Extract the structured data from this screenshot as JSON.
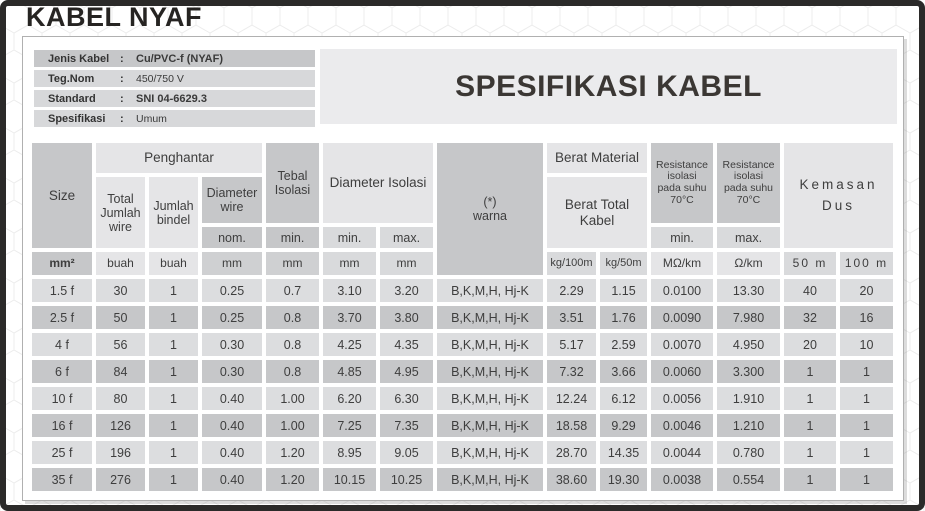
{
  "page": {
    "title": "KABEL NYAF"
  },
  "info_box": {
    "rows": [
      {
        "label": "Jenis Kabel",
        "sep": ":",
        "value": "Cu/PVC-f (NYAF)"
      },
      {
        "label": "Teg.Nom",
        "sep": ":",
        "value": "450/750 V"
      },
      {
        "label": "Standard",
        "sep": ":",
        "value": "SNI 04-6629.3"
      },
      {
        "label": "Spesifikasi",
        "sep": ":",
        "value": "Umum"
      }
    ]
  },
  "spec_header": {
    "title": "SPESIFIKASI KABEL"
  },
  "table": {
    "headers": {
      "size": "Size",
      "penghantar": "Penghantar",
      "total_jumlah_wire": "Total Jumlah wire",
      "jumlah_bindel": "Jumlah bindel",
      "diameter_wire": "Diameter wire",
      "diameter_wire_sub": "nom.",
      "tebal_isolasi": "Tebal Isolasi",
      "tebal_isolasi_sub": "min.",
      "diameter_isolasi": "Diameter Isolasi",
      "diameter_isolasi_min": "min.",
      "diameter_isolasi_max": "max.",
      "warna_mark": "(*)",
      "warna": "warna",
      "berat_material": "Berat Material",
      "berat_total_kabel": "Berat Total Kabel",
      "resistance_isolasi": "Resistance isolasi pada suhu 70°C",
      "resistance_min_sub": "min.",
      "resistance_max_sub": "max.",
      "kemasan_dus": "Kemasan Dus"
    },
    "units": [
      "mm²",
      "buah",
      "buah",
      "mm",
      "mm",
      "mm",
      "mm",
      "kg/100m",
      "kg/50m",
      "MΩ/km",
      "Ω/km",
      "50 m",
      "100 m"
    ],
    "rows": [
      [
        "1.5 f",
        "30",
        "1",
        "0.25",
        "0.7",
        "3.10",
        "3.20",
        "B,K,M,H, Hj-K",
        "2.29",
        "1.15",
        "0.0100",
        "13.30",
        "40",
        "20"
      ],
      [
        "2.5 f",
        "50",
        "1",
        "0.25",
        "0.8",
        "3.70",
        "3.80",
        "B,K,M,H, Hj-K",
        "3.51",
        "1.76",
        "0.0090",
        "7.980",
        "32",
        "16"
      ],
      [
        "4 f",
        "56",
        "1",
        "0.30",
        "0.8",
        "4.25",
        "4.35",
        "B,K,M,H, Hj-K",
        "5.17",
        "2.59",
        "0.0070",
        "4.950",
        "20",
        "10"
      ],
      [
        "6 f",
        "84",
        "1",
        "0.30",
        "0.8",
        "4.85",
        "4.95",
        "B,K,M,H, Hj-K",
        "7.32",
        "3.66",
        "0.0060",
        "3.300",
        "1",
        "1"
      ],
      [
        "10 f",
        "80",
        "1",
        "0.40",
        "1.00",
        "6.20",
        "6.30",
        "B,K,M,H, Hj-K",
        "12.24",
        "6.12",
        "0.0056",
        "1.910",
        "1",
        "1"
      ],
      [
        "16 f",
        "126",
        "1",
        "0.40",
        "1.00",
        "7.25",
        "7.35",
        "B,K,M,H, Hj-K",
        "18.58",
        "9.29",
        "0.0046",
        "1.210",
        "1",
        "1"
      ],
      [
        "25 f",
        "196",
        "1",
        "0.40",
        "1.20",
        "8.95",
        "9.05",
        "B,K,M,H, Hj-K",
        "28.70",
        "14.35",
        "0.0044",
        "0.780",
        "1",
        "1"
      ],
      [
        "35 f",
        "276",
        "1",
        "0.40",
        "1.20",
        "10.15",
        "10.25",
        "B,K,M,H, Hj-K",
        "38.60",
        "19.30",
        "0.0038",
        "0.554",
        "1",
        "1"
      ]
    ]
  },
  "colors": {
    "frame": "#2b2a29",
    "header_dark": "#c6c7c9",
    "header_light": "#e5e5e7",
    "row_light": "#dcdddf",
    "row_dark": "#c6c7c9",
    "spec_box": "#ebebed"
  }
}
